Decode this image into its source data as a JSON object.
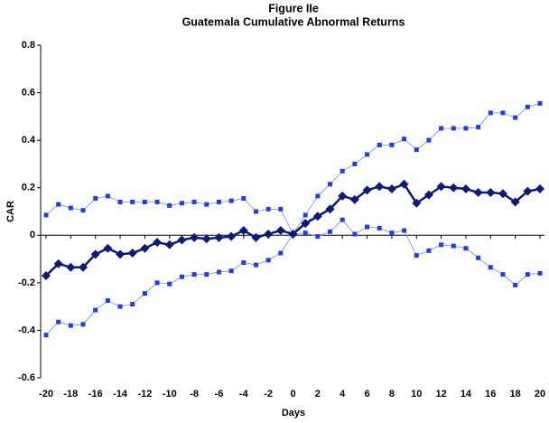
{
  "chart_data": {
    "type": "line",
    "title": "Figure IIe",
    "subtitle": "Guatemala Cumulative Abnormal Returns",
    "x_label": "Days",
    "y_label": "CAR",
    "x": [
      -20,
      -19,
      -18,
      -17,
      -16,
      -15,
      -14,
      -13,
      -12,
      -11,
      -10,
      -9,
      -8,
      -7,
      -6,
      -5,
      -4,
      -3,
      -2,
      -1,
      0,
      1,
      2,
      3,
      4,
      5,
      6,
      7,
      8,
      9,
      10,
      11,
      12,
      13,
      14,
      15,
      16,
      17,
      18,
      19,
      20
    ],
    "series": [
      {
        "color": "#6f8cf7",
        "marker": "square",
        "values": [
          0.085,
          0.13,
          0.115,
          0.105,
          0.155,
          0.165,
          0.14,
          0.14,
          0.14,
          0.14,
          0.125,
          0.135,
          0.14,
          0.13,
          0.14,
          0.145,
          0.155,
          0.1,
          0.11,
          0.11,
          0.005,
          0.085,
          0.165,
          0.215,
          0.27,
          0.3,
          0.34,
          0.38,
          0.38,
          0.405,
          0.36,
          0.4,
          0.45,
          0.45,
          0.45,
          0.455,
          0.515,
          0.515,
          0.495,
          0.54,
          0.555
        ]
      },
      {
        "color": "#6f8cf7",
        "marker": "square",
        "values": [
          -0.42,
          -0.365,
          -0.38,
          -0.375,
          -0.315,
          -0.275,
          -0.3,
          -0.29,
          -0.245,
          -0.2,
          -0.205,
          -0.175,
          -0.165,
          -0.165,
          -0.155,
          -0.15,
          -0.115,
          -0.125,
          -0.105,
          -0.075,
          0.005,
          0.01,
          -0.005,
          0.015,
          0.065,
          0.005,
          0.035,
          0.03,
          0.01,
          0.02,
          -0.085,
          -0.065,
          -0.04,
          -0.045,
          -0.055,
          -0.095,
          -0.135,
          -0.165,
          -0.21,
          -0.165,
          -0.16
        ]
      },
      {
        "color": "#0a1a80",
        "marker": "diamond",
        "values": [
          -0.17,
          -0.12,
          -0.135,
          -0.135,
          -0.08,
          -0.055,
          -0.08,
          -0.075,
          -0.055,
          -0.03,
          -0.04,
          -0.02,
          -0.01,
          -0.015,
          -0.01,
          -0.005,
          0.02,
          -0.01,
          0.005,
          0.02,
          0.005,
          0.05,
          0.08,
          0.11,
          0.165,
          0.15,
          0.19,
          0.205,
          0.195,
          0.215,
          0.135,
          0.17,
          0.205,
          0.2,
          0.195,
          0.18,
          0.18,
          0.175,
          0.14,
          0.185,
          0.195
        ]
      }
    ],
    "xlim": [
      -20,
      20
    ],
    "xticks": [
      -20,
      -18,
      -16,
      -14,
      -12,
      -10,
      -8,
      -6,
      -4,
      -2,
      0,
      2,
      4,
      6,
      8,
      10,
      12,
      14,
      16,
      18,
      20
    ],
    "ylim": [
      -0.6,
      0.8
    ],
    "yticks": [
      -0.6,
      -0.4,
      -0.2,
      0,
      0.2,
      0.4,
      0.6,
      0.8
    ],
    "grid": false
  }
}
